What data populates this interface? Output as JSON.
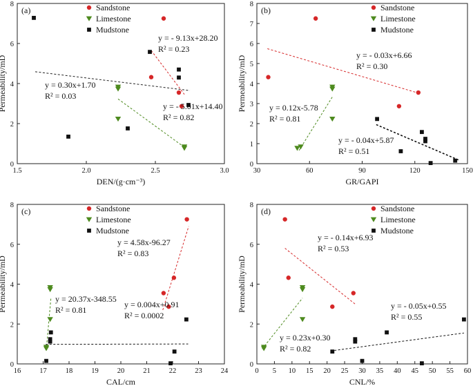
{
  "chart_data": [
    {
      "type": "scatter",
      "label": "(a)",
      "xlabel": "DEN/(g·cm⁻³)",
      "ylabel": "Permeability/mD",
      "xlim": [
        1.5,
        3.0
      ],
      "ylim": [
        0,
        8
      ],
      "xticks": [
        1.5,
        2.0,
        2.5,
        3.0
      ],
      "xtick_labels": [
        "1.5",
        "2.0",
        "2.5",
        "3.0"
      ],
      "yticks": [
        0,
        2,
        4,
        6,
        8
      ],
      "ytick_labels": [
        "0",
        "2",
        "4",
        "6",
        "8"
      ],
      "legend_position": "top-center",
      "legend": [
        {
          "name": "Sandstone",
          "marker": "circle",
          "color": "#d62728"
        },
        {
          "name": "Limestone",
          "marker": "triangle-down",
          "color": "#4d8a1e"
        },
        {
          "name": "Mudstone",
          "marker": "square",
          "color": "#111111"
        }
      ],
      "series": [
        {
          "name": "Sandstone",
          "points": [
            [
              2.56,
              7.25
            ],
            [
              2.47,
              4.32
            ],
            [
              2.67,
              3.55
            ],
            [
              2.69,
              2.87
            ]
          ]
        },
        {
          "name": "Limestone",
          "points": [
            [
              2.23,
              3.83
            ],
            [
              2.23,
              3.73
            ],
            [
              2.23,
              2.23
            ],
            [
              2.71,
              0.84
            ],
            [
              2.71,
              0.77
            ]
          ]
        },
        {
          "name": "Mudstone",
          "points": [
            [
              1.62,
              7.28
            ],
            [
              2.46,
              5.58
            ],
            [
              2.67,
              4.7
            ],
            [
              2.67,
              4.3
            ],
            [
              2.74,
              2.93
            ],
            [
              2.3,
              1.76
            ],
            [
              1.87,
              1.35
            ]
          ]
        }
      ],
      "fits": [
        {
          "series": "Sandstone",
          "x": [
            2.47,
            2.71
          ],
          "y": [
            5.65,
            3.46
          ],
          "style": "dashed",
          "color": "#d62728"
        },
        {
          "series": "Limestone",
          "x": [
            2.23,
            2.72
          ],
          "y": [
            3.23,
            0.77
          ],
          "style": "dashed",
          "color": "#4d8a1e"
        },
        {
          "series": "Mudstone",
          "x": [
            1.63,
            2.75
          ],
          "y": [
            4.59,
            3.65
          ],
          "style": "dashed",
          "color": "#222222"
        }
      ],
      "annotations": [
        {
          "lines": [
            "y = - 9.13x+28.20",
            "R² = 0.23"
          ]
        },
        {
          "lines": [
            "y = 0.30x+1.70",
            "R² = 0.03"
          ]
        },
        {
          "lines": [
            "y = - 5.01x+14.40",
            "R² = 0.82"
          ]
        }
      ]
    },
    {
      "type": "scatter",
      "label": "(b)",
      "xlabel": "GR/GAPI",
      "ylabel": "Permeability/mD",
      "xlim": [
        30,
        150
      ],
      "ylim": [
        0,
        8
      ],
      "xticks": [
        30,
        60,
        90,
        120,
        150
      ],
      "xtick_labels": [
        "30",
        "60",
        "90",
        "120",
        "150"
      ],
      "yticks": [
        0,
        1,
        2,
        3,
        4,
        5,
        6,
        7,
        8
      ],
      "ytick_labels": [
        "0",
        "1",
        "2",
        "3",
        "4",
        "5",
        "6",
        "7",
        "8"
      ],
      "legend_position": "top-right",
      "legend": [
        {
          "name": "Sandstone",
          "marker": "circle",
          "color": "#d62728"
        },
        {
          "name": "Limestone",
          "marker": "triangle-down",
          "color": "#4d8a1e"
        },
        {
          "name": "Mudstone",
          "marker": "square",
          "color": "#111111"
        }
      ],
      "series": [
        {
          "name": "Sandstone",
          "points": [
            [
              63.5,
              7.25
            ],
            [
              36.5,
              4.32
            ],
            [
              122,
              3.55
            ],
            [
              111,
              2.87
            ]
          ]
        },
        {
          "name": "Limestone",
          "points": [
            [
              73,
              3.83
            ],
            [
              73,
              3.73
            ],
            [
              73,
              2.23
            ],
            [
              55,
              0.84
            ],
            [
              53,
              0.77
            ]
          ]
        },
        {
          "name": "Mudstone",
          "points": [
            [
              98.5,
              2.23
            ],
            [
              124,
              1.58
            ],
            [
              126,
              1.24
            ],
            [
              126,
              1.12
            ],
            [
              112,
              0.62
            ],
            [
              129,
              0.03
            ],
            [
              143,
              0.15
            ]
          ]
        }
      ],
      "fits": [
        {
          "series": "Sandstone",
          "x": [
            36,
            123
          ],
          "y": [
            5.74,
            3.5
          ],
          "style": "dashed",
          "color": "#d62728"
        },
        {
          "series": "Limestone",
          "x": [
            54,
            73
          ],
          "y": [
            0.66,
            3.33
          ],
          "style": "dashed",
          "color": "#4d8a1e"
        },
        {
          "series": "Mudstone",
          "x": [
            98,
            145
          ],
          "y": [
            1.95,
            0.18
          ],
          "style": "dashed",
          "color": "#111111"
        }
      ],
      "annotations": [
        {
          "lines": [
            "y = - 0.03x+6.66",
            "R² = 0.30"
          ]
        },
        {
          "lines": [
            "y = 0.12x-5.78",
            "R² = 0.81"
          ]
        },
        {
          "lines": [
            "y = - 0.04x+5.87",
            "R² = 0.51"
          ]
        }
      ]
    },
    {
      "type": "scatter",
      "label": "(c)",
      "xlabel": "CAL/cm",
      "ylabel": "Permeability/mD",
      "xlim": [
        16,
        24
      ],
      "ylim": [
        0,
        8
      ],
      "xticks": [
        16,
        17,
        18,
        19,
        20,
        21,
        22,
        23,
        24
      ],
      "xtick_labels": [
        "16",
        "17",
        "18",
        "19",
        "20",
        "21",
        "22",
        "23",
        "24"
      ],
      "yticks": [
        0,
        2,
        4,
        6,
        8
      ],
      "ytick_labels": [
        "0",
        "2",
        "4",
        "6",
        "8"
      ],
      "legend_position": "top-center",
      "legend": [
        {
          "name": "Sandstone",
          "marker": "circle",
          "color": "#d62728"
        },
        {
          "name": "Limestone",
          "marker": "triangle-down",
          "color": "#4d8a1e"
        },
        {
          "name": "Mudstone",
          "marker": "square",
          "color": "#111111"
        }
      ],
      "series": [
        {
          "name": "Sandstone",
          "points": [
            [
              22.55,
              7.25
            ],
            [
              22.05,
              4.32
            ],
            [
              21.65,
              3.55
            ],
            [
              21.85,
              2.87
            ]
          ]
        },
        {
          "name": "Limestone",
          "points": [
            [
              17.27,
              3.83
            ],
            [
              17.27,
              3.73
            ],
            [
              17.27,
              2.23
            ],
            [
              17.12,
              0.84
            ],
            [
              17.12,
              0.77
            ]
          ]
        },
        {
          "name": "Mudstone",
          "points": [
            [
              22.53,
              2.23
            ],
            [
              17.3,
              1.58
            ],
            [
              17.27,
              1.24
            ],
            [
              17.27,
              1.12
            ],
            [
              22.07,
              0.62
            ],
            [
              17.12,
              0.15
            ],
            [
              21.92,
              0.03
            ]
          ]
        }
      ],
      "fits": [
        {
          "series": "Sandstone",
          "x": [
            21.62,
            22.62
          ],
          "y": [
            2.7,
            6.9
          ],
          "style": "dashed",
          "color": "#d62728"
        },
        {
          "series": "Limestone",
          "x": [
            17.12,
            17.3
          ],
          "y": [
            0.7,
            3.3
          ],
          "style": "dashed",
          "color": "#4d8a1e"
        },
        {
          "series": "Mudstone",
          "x": [
            17.1,
            22.6
          ],
          "y": [
            0.98,
            1.0
          ],
          "style": "dashed",
          "color": "#111111"
        }
      ],
      "annotations": [
        {
          "lines": [
            "y = 4.58x-96.27",
            "R² = 0.83"
          ]
        },
        {
          "lines": [
            "y = 20.37x-348.55",
            "R² = 0.81"
          ]
        },
        {
          "lines": [
            "y = 0.004x+0.91",
            "R² = 0.0002"
          ]
        }
      ]
    },
    {
      "type": "scatter",
      "label": "(d)",
      "xlabel": "CNL/%",
      "ylabel": "Permeability/mD",
      "xlim": [
        0,
        60
      ],
      "ylim": [
        0,
        8
      ],
      "xticks": [
        0,
        5,
        10,
        15,
        20,
        25,
        30,
        35,
        40,
        45,
        50,
        55,
        60
      ],
      "xtick_labels": [
        "0",
        "5",
        "10",
        "15",
        "20",
        "25",
        "30",
        "35",
        "40",
        "45",
        "50",
        "55",
        "60"
      ],
      "yticks": [
        0,
        2,
        4,
        6,
        8
      ],
      "ytick_labels": [
        "0",
        "2",
        "4",
        "6",
        "8"
      ],
      "legend_position": "top-right",
      "legend": [
        {
          "name": "Sandstone",
          "marker": "circle",
          "color": "#d62728"
        },
        {
          "name": "Limestone",
          "marker": "triangle-down",
          "color": "#4d8a1e"
        },
        {
          "name": "Mudstone",
          "marker": "square",
          "color": "#111111"
        }
      ],
      "series": [
        {
          "name": "Sandstone",
          "points": [
            [
              8,
              7.25
            ],
            [
              9,
              4.32
            ],
            [
              27.5,
              3.55
            ],
            [
              21.5,
              2.87
            ]
          ]
        },
        {
          "name": "Limestone",
          "points": [
            [
              13,
              3.83
            ],
            [
              13,
              3.73
            ],
            [
              13,
              2.23
            ],
            [
              2,
              0.84
            ],
            [
              2,
              0.77
            ]
          ]
        },
        {
          "name": "Mudstone",
          "points": [
            [
              59,
              2.23
            ],
            [
              37,
              1.58
            ],
            [
              28,
              1.24
            ],
            [
              28,
              1.12
            ],
            [
              21.5,
              0.62
            ],
            [
              30,
              0.15
            ],
            [
              47,
              0.03
            ]
          ]
        }
      ],
      "fits": [
        {
          "series": "Sandstone",
          "x": [
            8,
            28
          ],
          "y": [
            5.8,
            3.0
          ],
          "style": "dashed",
          "color": "#d62728"
        },
        {
          "series": "Limestone",
          "x": [
            1.5,
            13
          ],
          "y": [
            0.75,
            3.3
          ],
          "style": "dashed",
          "color": "#4d8a1e"
        },
        {
          "series": "Mudstone",
          "x": [
            21,
            59
          ],
          "y": [
            0.65,
            1.55
          ],
          "style": "dashed",
          "color": "#111111"
        }
      ],
      "annotations": [
        {
          "lines": [
            "y = - 0.14x+6.93",
            "R² = 0.53"
          ]
        },
        {
          "lines": [
            "y = - 0.05x+0.55",
            "R² = 0.55"
          ]
        },
        {
          "lines": [
            "y = 0.23x+0.30",
            "R² = 0.82"
          ]
        }
      ]
    }
  ]
}
